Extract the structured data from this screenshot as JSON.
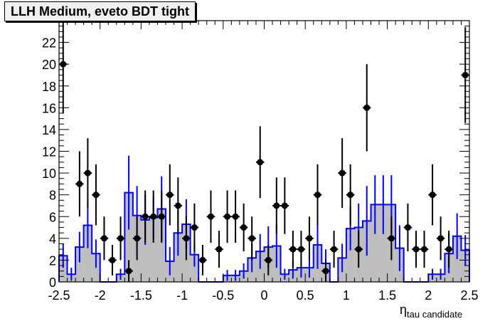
{
  "chart_data": {
    "type": "histogram",
    "title": "LLH Medium, eveto BDT tight",
    "xlabel_main": "η",
    "xlabel_sub": "tau candidate",
    "xlim": [
      -2.5,
      2.5
    ],
    "ylim": [
      0,
      24
    ],
    "x_tick_labels": [
      "-2.5",
      "-2",
      "-1.5",
      "-1",
      "-0.5",
      "0",
      "0.5",
      "1",
      "1.5",
      "2",
      "2.5"
    ],
    "y_tick_labels": [
      "0",
      "2",
      "4",
      "6",
      "8",
      "10",
      "12",
      "14",
      "16",
      "18",
      "20",
      "22"
    ],
    "bin_edges": [
      -2.5,
      -2.4,
      -2.3,
      -2.2,
      -2.1,
      -2.0,
      -1.9,
      -1.8,
      -1.7,
      -1.6,
      -1.5,
      -1.4,
      -1.3,
      -1.2,
      -1.1,
      -1.0,
      -0.9,
      -0.8,
      -0.7,
      -0.6,
      -0.5,
      -0.4,
      -0.3,
      -0.2,
      -0.1,
      0.0,
      0.1,
      0.2,
      0.3,
      0.4,
      0.5,
      0.6,
      0.7,
      0.8,
      0.9,
      1.0,
      1.1,
      1.2,
      1.3,
      1.4,
      1.5,
      1.6,
      1.7,
      1.8,
      1.9,
      2.0,
      2.1,
      2.2,
      2.3,
      2.4,
      2.5
    ],
    "mc_fill_color": "#bebebe",
    "mc_line_color": "#0000ff",
    "data_color": "#000000",
    "mc_histogram": {
      "x": [
        -2.45,
        -2.35,
        -2.25,
        -2.15,
        -2.05,
        -1.95,
        -1.85,
        -1.75,
        -1.65,
        -1.55,
        -1.45,
        -1.35,
        -1.25,
        -1.15,
        -1.05,
        -0.95,
        -0.85,
        -0.75,
        -0.65,
        -0.55,
        -0.45,
        -0.35,
        -0.25,
        -0.15,
        -0.05,
        0.05,
        0.15,
        0.25,
        0.35,
        0.45,
        0.55,
        0.65,
        0.75,
        0.85,
        0.95,
        1.05,
        1.15,
        1.25,
        1.35,
        1.45,
        1.55,
        1.65,
        1.75,
        1.85,
        1.95,
        2.05,
        2.15,
        2.25,
        2.35,
        2.45
      ],
      "values": [
        2.4,
        0.7,
        3.2,
        5.2,
        2.6,
        0.0,
        0.0,
        0.7,
        8.2,
        6.1,
        5.7,
        5.9,
        6.7,
        1.9,
        4.5,
        5.3,
        2.5,
        0.0,
        0.0,
        0.0,
        0.6,
        0.6,
        1.0,
        2.2,
        2.8,
        3.2,
        3.3,
        0.7,
        1.1,
        1.3,
        1.3,
        3.4,
        1.7,
        0.0,
        2.2,
        4.9,
        5.0,
        5.6,
        7.1,
        7.1,
        7.1,
        3.1,
        0.0,
        0.0,
        0.0,
        0.7,
        0.7,
        2.6,
        4.2,
        2.9
      ],
      "errors": [
        1.1,
        0.6,
        1.4,
        2.1,
        1.3,
        0.0,
        0.0,
        0.5,
        3.4,
        2.7,
        2.3,
        1.9,
        3.0,
        1.3,
        2.1,
        2.3,
        1.1,
        0.0,
        0.0,
        0.0,
        0.5,
        0.5,
        0.7,
        1.3,
        1.6,
        1.9,
        2.0,
        0.5,
        0.8,
        0.9,
        0.9,
        2.2,
        1.3,
        0.0,
        1.3,
        2.0,
        2.2,
        3.2,
        2.7,
        2.7,
        2.7,
        2.1,
        0.0,
        0.0,
        0.0,
        0.5,
        0.5,
        1.8,
        2.1,
        1.4
      ]
    },
    "data_points": [
      {
        "x": -2.45,
        "y": 20,
        "err": 4.5
      },
      {
        "x": -2.35,
        "y": 0,
        "err": 0
      },
      {
        "x": -2.25,
        "y": 9,
        "err": 3.0
      },
      {
        "x": -2.15,
        "y": 10,
        "err": 3.2
      },
      {
        "x": -2.05,
        "y": 8,
        "err": 2.8
      },
      {
        "x": -1.95,
        "y": 4,
        "err": 2.0
      },
      {
        "x": -1.85,
        "y": 2,
        "err": 1.4
      },
      {
        "x": -1.75,
        "y": 4,
        "err": 2.0
      },
      {
        "x": -1.65,
        "y": 1,
        "err": 1.0
      },
      {
        "x": -1.55,
        "y": 4,
        "err": 2.0
      },
      {
        "x": -1.45,
        "y": 6,
        "err": 2.4
      },
      {
        "x": -1.35,
        "y": 6,
        "err": 2.4
      },
      {
        "x": -1.25,
        "y": 6,
        "err": 2.4
      },
      {
        "x": -1.15,
        "y": 8,
        "err": 2.8
      },
      {
        "x": -1.05,
        "y": 7,
        "err": 2.6
      },
      {
        "x": -0.95,
        "y": 4,
        "err": 2.0
      },
      {
        "x": -0.85,
        "y": 5,
        "err": 2.2
      },
      {
        "x": -0.75,
        "y": 2,
        "err": 1.4
      },
      {
        "x": -0.65,
        "y": 6,
        "err": 2.4
      },
      {
        "x": -0.55,
        "y": 3,
        "err": 1.7
      },
      {
        "x": -0.45,
        "y": 6,
        "err": 2.4
      },
      {
        "x": -0.35,
        "y": 6,
        "err": 2.4
      },
      {
        "x": -0.25,
        "y": 5,
        "err": 2.2
      },
      {
        "x": -0.15,
        "y": 4,
        "err": 2.0
      },
      {
        "x": -0.05,
        "y": 11,
        "err": 3.3
      },
      {
        "x": 0.05,
        "y": 2,
        "err": 1.4
      },
      {
        "x": 0.15,
        "y": 7,
        "err": 2.6
      },
      {
        "x": 0.25,
        "y": 7,
        "err": 2.6
      },
      {
        "x": 0.35,
        "y": 3,
        "err": 1.7
      },
      {
        "x": 0.45,
        "y": 3,
        "err": 1.7
      },
      {
        "x": 0.55,
        "y": 4,
        "err": 2.0
      },
      {
        "x": 0.65,
        "y": 8,
        "err": 2.8
      },
      {
        "x": 0.75,
        "y": 1,
        "err": 1.0
      },
      {
        "x": 0.85,
        "y": 3,
        "err": 1.7
      },
      {
        "x": 0.95,
        "y": 10,
        "err": 3.2
      },
      {
        "x": 1.05,
        "y": 8,
        "err": 2.8
      },
      {
        "x": 1.15,
        "y": 3,
        "err": 1.7
      },
      {
        "x": 1.25,
        "y": 16,
        "err": 4.0
      },
      {
        "x": 1.35,
        "y": 0,
        "err": 0
      },
      {
        "x": 1.45,
        "y": 0,
        "err": 0
      },
      {
        "x": 1.55,
        "y": 4,
        "err": 2.0
      },
      {
        "x": 1.65,
        "y": 0,
        "err": 0
      },
      {
        "x": 1.75,
        "y": 5,
        "err": 2.2
      },
      {
        "x": 1.85,
        "y": 3,
        "err": 1.7
      },
      {
        "x": 1.95,
        "y": 3,
        "err": 1.7
      },
      {
        "x": 2.05,
        "y": 8,
        "err": 2.8
      },
      {
        "x": 2.15,
        "y": 4,
        "err": 2.0
      },
      {
        "x": 2.25,
        "y": 3,
        "err": 1.7
      },
      {
        "x": 2.35,
        "y": 0,
        "err": 0
      },
      {
        "x": 2.45,
        "y": 19,
        "err": 4.4
      }
    ]
  }
}
